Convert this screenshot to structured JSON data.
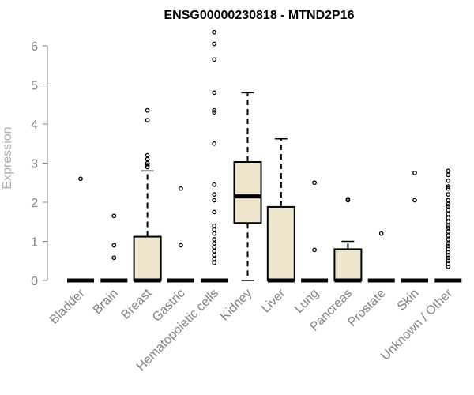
{
  "chart_data": {
    "type": "boxplot",
    "title": "ENSG00000230818 - MTND2P16",
    "ylabel": "Expression",
    "xlabel": "",
    "ylim": [
      0,
      6.4
    ],
    "yticks": [
      0,
      1,
      2,
      3,
      4,
      5,
      6
    ],
    "box_fill": "#ede6cd",
    "categories": [
      "Bladder",
      "Brain",
      "Breast",
      "Gastric",
      "Hematopoietic cells",
      "Kidney",
      "Liver",
      "Lung",
      "Pancreas",
      "Prostate",
      "Skin",
      "Unknown / Other"
    ],
    "boxes": [
      {
        "category": "Bladder",
        "q1": 0,
        "median": 0,
        "q3": 0,
        "whisker_low": 0,
        "whisker_high": 0,
        "outliers": [
          2.6
        ]
      },
      {
        "category": "Brain",
        "q1": 0,
        "median": 0,
        "q3": 0,
        "whisker_low": 0,
        "whisker_high": 0,
        "outliers": [
          1.65,
          0.9,
          0.58
        ]
      },
      {
        "category": "Breast",
        "q1": 0,
        "median": 0,
        "q3": 1.12,
        "whisker_low": 0,
        "whisker_high": 2.8,
        "outliers": [
          4.35,
          4.1,
          3.2,
          3.1,
          3.0,
          2.95,
          2.9
        ]
      },
      {
        "category": "Gastric",
        "q1": 0,
        "median": 0,
        "q3": 0,
        "whisker_low": 0,
        "whisker_high": 0,
        "outliers": [
          2.35,
          0.9
        ]
      },
      {
        "category": "Hematopoietic cells",
        "q1": 0,
        "median": 0,
        "q3": 0,
        "whisker_low": 0,
        "whisker_high": 0,
        "outliers": [
          6.35,
          6.05,
          5.65,
          4.8,
          4.35,
          4.3,
          3.5,
          2.45,
          2.2,
          2.05,
          1.75,
          1.4,
          1.3,
          1.2,
          1.05,
          0.95,
          0.85,
          0.75,
          0.65,
          0.55,
          0.45
        ]
      },
      {
        "category": "Kidney",
        "q1": 1.47,
        "median": 2.15,
        "q3": 3.03,
        "whisker_low": 0,
        "whisker_high": 4.8,
        "outliers": []
      },
      {
        "category": "Liver",
        "q1": 0,
        "median": 0,
        "q3": 1.88,
        "whisker_low": 0,
        "whisker_high": 3.62,
        "outliers": []
      },
      {
        "category": "Lung",
        "q1": 0,
        "median": 0,
        "q3": 0,
        "whisker_low": 0,
        "whisker_high": 0,
        "outliers": [
          2.5,
          0.78
        ]
      },
      {
        "category": "Pancreas",
        "q1": 0,
        "median": 0,
        "q3": 0.8,
        "whisker_low": 0,
        "whisker_high": 1.0,
        "outliers": [
          2.08,
          2.05
        ]
      },
      {
        "category": "Prostate",
        "q1": 0,
        "median": 0,
        "q3": 0,
        "whisker_low": 0,
        "whisker_high": 0,
        "outliers": [
          1.2
        ]
      },
      {
        "category": "Skin",
        "q1": 0,
        "median": 0,
        "q3": 0,
        "whisker_low": 0,
        "whisker_high": 0,
        "outliers": [
          2.75,
          2.05
        ]
      },
      {
        "category": "Unknown / Other",
        "q1": 0,
        "median": 0,
        "q3": 0,
        "whisker_low": 0,
        "whisker_high": 0,
        "outliers": [
          2.8,
          2.7,
          2.55,
          2.4,
          2.35,
          2.2,
          2.05,
          1.95,
          1.9,
          1.8,
          1.7,
          1.6,
          1.5,
          1.4,
          1.35,
          1.25,
          1.15,
          1.05,
          0.95,
          0.88,
          0.8,
          0.72,
          0.65,
          0.58,
          0.5,
          0.42,
          0.35
        ]
      }
    ]
  }
}
